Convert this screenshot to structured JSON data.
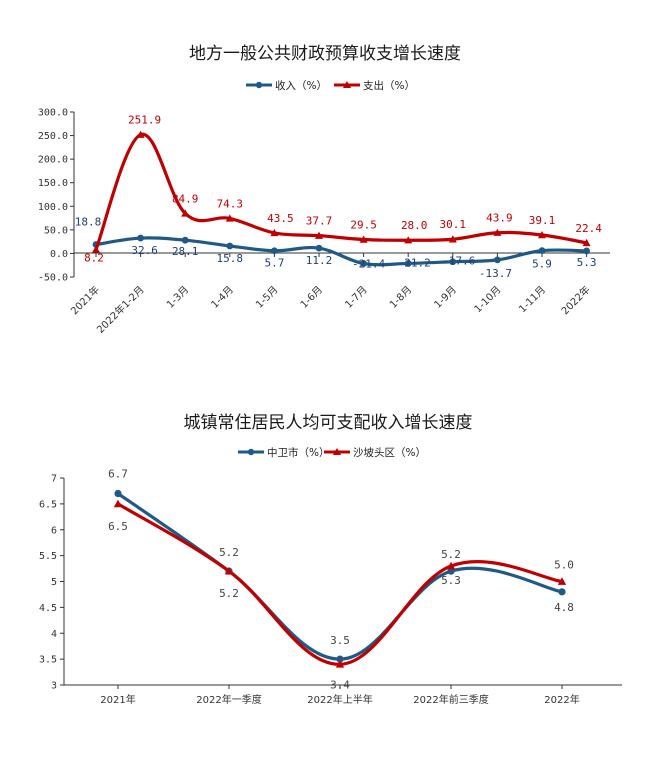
{
  "colors": {
    "blue": "#1f5a87",
    "red": "#c00000",
    "axis": "#333333"
  },
  "chart_data": [
    {
      "type": "line",
      "title": "地方一般公共财政预算收支增长速度",
      "categories": [
        "2021年",
        "2022年1-2月",
        "1-3月",
        "1-4月",
        "1-5月",
        "1-6月",
        "1-7月",
        "1-8月",
        "1-9月",
        "1-10月",
        "1-11月",
        "2022年"
      ],
      "series": [
        {
          "name": "收入（%）",
          "values": [
            18.8,
            32.6,
            28.1,
            15.8,
            5.7,
            11.2,
            -21.4,
            -21.2,
            -17.6,
            -13.7,
            5.9,
            5.3
          ],
          "labels": [
            "18.8",
            "32.6",
            "28.1",
            "15.8",
            "5.7",
            "11.2",
            "-21.4",
            "-21.2",
            "-17.6",
            "-13.7",
            "5.9",
            "5.3"
          ]
        },
        {
          "name": "支出（%）",
          "values": [
            8.2,
            251.9,
            84.9,
            74.3,
            43.5,
            37.7,
            29.5,
            28.0,
            30.1,
            43.9,
            39.1,
            22.4
          ],
          "labels": [
            "8.2",
            "251.9",
            "84.9",
            "74.3",
            "43.5",
            "37.7",
            "29.5",
            "28.0",
            "30.1",
            "43.9",
            "39.1",
            "22.4"
          ]
        }
      ],
      "yticks": [
        "300.0",
        "250.0",
        "200.0",
        "150.0",
        "100.0",
        "50.0",
        "0.0",
        "-50.0"
      ],
      "ylim": [
        -50,
        300
      ],
      "legend_position": "top"
    },
    {
      "type": "line",
      "title": "城镇常住居民人均可支配收入增长速度",
      "categories": [
        "2021年",
        "2022年一季度",
        "2022年上半年",
        "2022年前三季度",
        "2022年"
      ],
      "series": [
        {
          "name": "中卫市（%）",
          "values": [
            6.7,
            5.2,
            3.5,
            5.2,
            4.8
          ],
          "labels": [
            "6.7",
            "5.2",
            "3.5",
            "5.2",
            "4.8"
          ]
        },
        {
          "name": "沙坡头区（%）",
          "values": [
            6.5,
            5.2,
            3.4,
            5.3,
            5.0
          ],
          "labels": [
            "6.5",
            "5.2",
            "3.4",
            "5.3",
            "5.0"
          ]
        }
      ],
      "yticks": [
        "7",
        "6.5",
        "6",
        "5.5",
        "5",
        "4.5",
        "4",
        "3.5",
        "3"
      ],
      "ylim": [
        3,
        7
      ],
      "legend_position": "top"
    }
  ]
}
